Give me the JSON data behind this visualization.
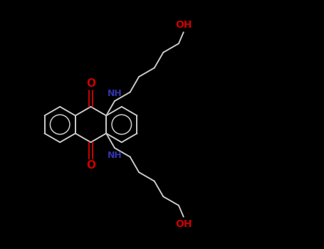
{
  "bg_color": "#000000",
  "bond_color": "#c8c8c8",
  "O_color": "#cc0000",
  "N_color": "#3333aa",
  "figsize": [
    4.55,
    3.5
  ],
  "dpi": 100,
  "lw": 1.4,
  "r": 0.55,
  "xlim": [
    0,
    10
  ],
  "ylim": [
    0,
    7.7
  ],
  "core_x": 3.2,
  "core_y": 3.85
}
